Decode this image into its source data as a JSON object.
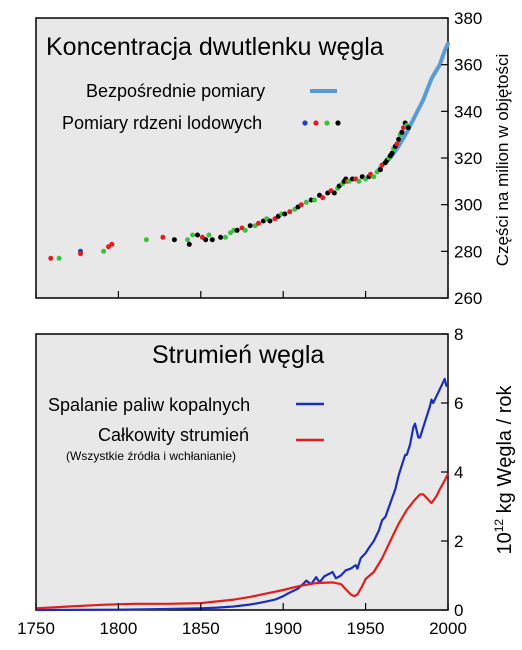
{
  "chart_data": [
    {
      "type": "scatter",
      "title": "Koncentracja dwutlenku węgla",
      "ylabel": "Części na milion w objętości",
      "xlim": [
        1750,
        2000
      ],
      "ylim": [
        260,
        380
      ],
      "yticks": [
        260,
        280,
        300,
        320,
        340,
        360,
        380
      ],
      "y_axis_side": "right",
      "grid": false,
      "legend_position": "top-right",
      "series": [
        {
          "name": "Bezpośrednie pomiary",
          "style": "line",
          "color": "#5b9bd5",
          "x": [
            1958,
            1960,
            1965,
            1970,
            1975,
            1980,
            1985,
            1990,
            1995,
            1998,
            2000
          ],
          "y": [
            315,
            317,
            320,
            325,
            331,
            338,
            345,
            354,
            360,
            366,
            369
          ]
        },
        {
          "name": "Pomiary rdzeni lodowych",
          "style": "points",
          "points": [
            {
              "x": 1759,
              "y": 277,
              "c": "#e11e1e"
            },
            {
              "x": 1764,
              "y": 277,
              "c": "#3fbf3f"
            },
            {
              "x": 1777,
              "y": 280,
              "c": "#1f3fbf"
            },
            {
              "x": 1777,
              "y": 279,
              "c": "#e11e1e"
            },
            {
              "x": 1791,
              "y": 280,
              "c": "#3fbf3f"
            },
            {
              "x": 1794,
              "y": 282,
              "c": "#e11e1e"
            },
            {
              "x": 1796,
              "y": 283,
              "c": "#e11e1e"
            },
            {
              "x": 1817,
              "y": 285,
              "c": "#3fbf3f"
            },
            {
              "x": 1827,
              "y": 286,
              "c": "#e11e1e"
            },
            {
              "x": 1834,
              "y": 285,
              "c": "#000000"
            },
            {
              "x": 1842,
              "y": 285,
              "c": "#3fbf3f"
            },
            {
              "x": 1843,
              "y": 283,
              "c": "#000000"
            },
            {
              "x": 1845,
              "y": 287,
              "c": "#3fbf3f"
            },
            {
              "x": 1848,
              "y": 287,
              "c": "#000000"
            },
            {
              "x": 1851,
              "y": 286,
              "c": "#e11e1e"
            },
            {
              "x": 1853,
              "y": 285,
              "c": "#000000"
            },
            {
              "x": 1855,
              "y": 287,
              "c": "#3fbf3f"
            },
            {
              "x": 1857,
              "y": 285,
              "c": "#000000"
            },
            {
              "x": 1862,
              "y": 286,
              "c": "#000000"
            },
            {
              "x": 1865,
              "y": 286,
              "c": "#3fbf3f"
            },
            {
              "x": 1868,
              "y": 288,
              "c": "#3fbf3f"
            },
            {
              "x": 1870,
              "y": 289,
              "c": "#3fbf3f"
            },
            {
              "x": 1872,
              "y": 289,
              "c": "#000000"
            },
            {
              "x": 1875,
              "y": 290,
              "c": "#e11e1e"
            },
            {
              "x": 1877,
              "y": 289,
              "c": "#3fbf3f"
            },
            {
              "x": 1880,
              "y": 291,
              "c": "#000000"
            },
            {
              "x": 1883,
              "y": 291,
              "c": "#3fbf3f"
            },
            {
              "x": 1885,
              "y": 292,
              "c": "#e11e1e"
            },
            {
              "x": 1888,
              "y": 293,
              "c": "#000000"
            },
            {
              "x": 1890,
              "y": 294,
              "c": "#3fbf3f"
            },
            {
              "x": 1892,
              "y": 293,
              "c": "#000000"
            },
            {
              "x": 1895,
              "y": 294,
              "c": "#e11e1e"
            },
            {
              "x": 1897,
              "y": 295,
              "c": "#000000"
            },
            {
              "x": 1899,
              "y": 296,
              "c": "#3fbf3f"
            },
            {
              "x": 1901,
              "y": 296,
              "c": "#000000"
            },
            {
              "x": 1904,
              "y": 297,
              "c": "#e11e1e"
            },
            {
              "x": 1907,
              "y": 298,
              "c": "#3fbf3f"
            },
            {
              "x": 1909,
              "y": 299,
              "c": "#000000"
            },
            {
              "x": 1911,
              "y": 300,
              "c": "#e11e1e"
            },
            {
              "x": 1914,
              "y": 301,
              "c": "#3fbf3f"
            },
            {
              "x": 1917,
              "y": 302,
              "c": "#000000"
            },
            {
              "x": 1919,
              "y": 302,
              "c": "#3fbf3f"
            },
            {
              "x": 1922,
              "y": 304,
              "c": "#000000"
            },
            {
              "x": 1924,
              "y": 303,
              "c": "#e11e1e"
            },
            {
              "x": 1927,
              "y": 305,
              "c": "#000000"
            },
            {
              "x": 1929,
              "y": 306,
              "c": "#e11e1e"
            },
            {
              "x": 1931,
              "y": 305,
              "c": "#000000"
            },
            {
              "x": 1933,
              "y": 307,
              "c": "#3fbf3f"
            },
            {
              "x": 1934,
              "y": 308,
              "c": "#000000"
            },
            {
              "x": 1936,
              "y": 309,
              "c": "#3fbf3f"
            },
            {
              "x": 1937,
              "y": 310,
              "c": "#000000"
            },
            {
              "x": 1938,
              "y": 311,
              "c": "#000000"
            },
            {
              "x": 1939,
              "y": 310,
              "c": "#e11e1e"
            },
            {
              "x": 1940,
              "y": 310,
              "c": "#3fbf3f"
            },
            {
              "x": 1942,
              "y": 311,
              "c": "#000000"
            },
            {
              "x": 1944,
              "y": 311,
              "c": "#e11e1e"
            },
            {
              "x": 1946,
              "y": 310,
              "c": "#3fbf3f"
            },
            {
              "x": 1948,
              "y": 312,
              "c": "#000000"
            },
            {
              "x": 1950,
              "y": 311,
              "c": "#3fbf3f"
            },
            {
              "x": 1952,
              "y": 312,
              "c": "#000000"
            },
            {
              "x": 1953,
              "y": 313,
              "c": "#e11e1e"
            },
            {
              "x": 1955,
              "y": 312,
              "c": "#3fbf3f"
            },
            {
              "x": 1957,
              "y": 314,
              "c": "#3fbf3f"
            },
            {
              "x": 1959,
              "y": 315,
              "c": "#000000"
            },
            {
              "x": 1960,
              "y": 317,
              "c": "#e11e1e"
            },
            {
              "x": 1962,
              "y": 318,
              "c": "#000000"
            },
            {
              "x": 1963,
              "y": 319,
              "c": "#000000"
            },
            {
              "x": 1964,
              "y": 320,
              "c": "#3fbf3f"
            },
            {
              "x": 1965,
              "y": 321,
              "c": "#000000"
            },
            {
              "x": 1966,
              "y": 322,
              "c": "#000000"
            },
            {
              "x": 1967,
              "y": 324,
              "c": "#3fbf3f"
            },
            {
              "x": 1968,
              "y": 325,
              "c": "#000000"
            },
            {
              "x": 1969,
              "y": 326,
              "c": "#e11e1e"
            },
            {
              "x": 1970,
              "y": 328,
              "c": "#000000"
            },
            {
              "x": 1971,
              "y": 330,
              "c": "#3fbf3f"
            },
            {
              "x": 1972,
              "y": 331,
              "c": "#000000"
            },
            {
              "x": 1973,
              "y": 333,
              "c": "#e11e1e"
            },
            {
              "x": 1974,
              "y": 335,
              "c": "#000000"
            },
            {
              "x": 1975,
              "y": 334,
              "c": "#3fbf3f"
            },
            {
              "x": 1976,
              "y": 333,
              "c": "#000000"
            }
          ]
        }
      ]
    },
    {
      "type": "line",
      "title": "Strumień węgla",
      "ylabel": "10¹² kg Węgla / rok",
      "ylabel_base": "10",
      "ylabel_exp": "12",
      "ylabel_rest": " kg Węgla / rok",
      "xlim": [
        1750,
        2000
      ],
      "ylim": [
        0,
        8
      ],
      "yticks": [
        0,
        2,
        4,
        6,
        8
      ],
      "xticks": [
        1750,
        1800,
        1850,
        1900,
        1950,
        2000
      ],
      "y_axis_side": "right",
      "grid": false,
      "legend_position": "top-left",
      "series": [
        {
          "name": "Spalanie paliw kopalnych",
          "color": "#1b2dbd",
          "x": [
            1750,
            1800,
            1830,
            1850,
            1860,
            1870,
            1880,
            1885,
            1890,
            1895,
            1900,
            1903,
            1906,
            1909,
            1912,
            1914,
            1917,
            1920,
            1922,
            1925,
            1928,
            1930,
            1932,
            1935,
            1938,
            1941,
            1944,
            1945,
            1947,
            1950,
            1952,
            1955,
            1958,
            1960,
            1962,
            1965,
            1968,
            1970,
            1972,
            1974,
            1975,
            1977,
            1979,
            1980,
            1981,
            1982,
            1983,
            1985,
            1987,
            1989,
            1990,
            1991,
            1992,
            1993,
            1995,
            1997,
            1998,
            1999,
            2000
          ],
          "y": [
            0.0,
            0.01,
            0.03,
            0.05,
            0.07,
            0.1,
            0.16,
            0.2,
            0.25,
            0.3,
            0.4,
            0.48,
            0.55,
            0.62,
            0.75,
            0.85,
            0.75,
            0.95,
            0.8,
            0.98,
            1.05,
            1.1,
            0.92,
            1.0,
            1.15,
            1.2,
            1.3,
            1.2,
            1.5,
            1.65,
            1.8,
            2.0,
            2.3,
            2.6,
            2.7,
            3.1,
            3.5,
            3.9,
            4.2,
            4.5,
            4.5,
            4.8,
            5.3,
            5.4,
            5.2,
            5.0,
            5.0,
            5.3,
            5.6,
            5.9,
            6.1,
            6.0,
            6.1,
            6.2,
            6.4,
            6.6,
            6.7,
            6.5,
            6.5
          ]
        },
        {
          "name": "Całkowity strumień",
          "note": "(Wszystkie źródła i wchłanianie)",
          "color": "#e11e1e",
          "x": [
            1750,
            1770,
            1790,
            1810,
            1830,
            1850,
            1860,
            1870,
            1880,
            1890,
            1900,
            1910,
            1920,
            1930,
            1935,
            1938,
            1941,
            1943,
            1945,
            1948,
            1950,
            1955,
            1960,
            1965,
            1970,
            1975,
            1980,
            1983,
            1985,
            1988,
            1990,
            1993,
            1995,
            1998,
            2000
          ],
          "y": [
            0.05,
            0.1,
            0.15,
            0.18,
            0.18,
            0.2,
            0.25,
            0.3,
            0.38,
            0.48,
            0.58,
            0.7,
            0.78,
            0.8,
            0.75,
            0.6,
            0.45,
            0.4,
            0.45,
            0.7,
            0.9,
            1.1,
            1.5,
            2.0,
            2.5,
            2.9,
            3.2,
            3.35,
            3.35,
            3.2,
            3.1,
            3.3,
            3.5,
            3.75,
            3.95
          ]
        }
      ]
    }
  ]
}
